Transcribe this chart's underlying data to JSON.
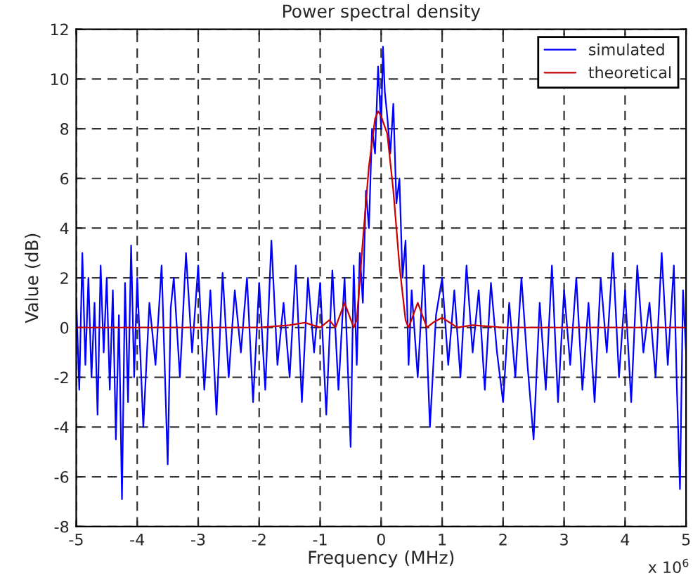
{
  "chart_data": {
    "type": "line",
    "title": "Power spectral density",
    "xlabel": "Frequency (MHz)",
    "ylabel": "Value (dB)",
    "annotations": [
      "x 10$^{6}$"
    ],
    "xlim": [
      -5,
      5
    ],
    "ylim": [
      -8,
      12
    ],
    "xticks": [
      -5,
      -4,
      -3,
      -2,
      -1,
      0,
      1,
      2,
      3,
      4,
      5
    ],
    "yticks": [
      -8,
      -6,
      -4,
      -2,
      0,
      2,
      4,
      6,
      8,
      10,
      12
    ],
    "grid": true,
    "legend": "top right",
    "line_style": "solid",
    "marker": "none",
    "series": [
      {
        "name": "simulated",
        "color": "#0000ff",
        "x": [
          -5,
          -4.95,
          -4.9,
          -4.85,
          -4.8,
          -4.75,
          -4.7,
          -4.65,
          -4.6,
          -4.55,
          -4.5,
          -4.45,
          -4.4,
          -4.35,
          -4.3,
          -4.25,
          -4.2,
          -4.15,
          -4.1,
          -4.05,
          -4,
          -3.9,
          -3.8,
          -3.7,
          -3.6,
          -3.5,
          -3.45,
          -3.4,
          -3.3,
          -3.2,
          -3.1,
          -3,
          -2.9,
          -2.8,
          -2.7,
          -2.6,
          -2.5,
          -2.4,
          -2.3,
          -2.2,
          -2.1,
          -2,
          -1.9,
          -1.8,
          -1.7,
          -1.6,
          -1.5,
          -1.4,
          -1.3,
          -1.2,
          -1.1,
          -1,
          -0.9,
          -0.8,
          -0.7,
          -0.6,
          -0.5,
          -0.45,
          -0.4,
          -0.35,
          -0.3,
          -0.25,
          -0.2,
          -0.15,
          -0.1,
          -0.05,
          0,
          0.03,
          0.06,
          0.1,
          0.15,
          0.2,
          0.25,
          0.3,
          0.35,
          0.4,
          0.45,
          0.5,
          0.6,
          0.7,
          0.8,
          0.9,
          1,
          1.1,
          1.2,
          1.3,
          1.4,
          1.5,
          1.6,
          1.7,
          1.8,
          1.9,
          2,
          2.1,
          2.2,
          2.3,
          2.4,
          2.5,
          2.6,
          2.7,
          2.8,
          2.9,
          3,
          3.1,
          3.2,
          3.3,
          3.4,
          3.5,
          3.6,
          3.7,
          3.8,
          3.9,
          4,
          4.1,
          4.2,
          4.3,
          4.4,
          4.5,
          4.6,
          4.7,
          4.8,
          4.85,
          4.9,
          4.95,
          5
        ],
        "values": [
          1.2,
          -2.5,
          3.0,
          -1.5,
          2.0,
          -2.0,
          1.0,
          -3.5,
          2.5,
          -1.0,
          2.0,
          -2.5,
          1.5,
          -4.5,
          0.5,
          -6.9,
          1.8,
          -3.0,
          3.3,
          -2.0,
          2.0,
          -4.0,
          1.0,
          -1.5,
          2.5,
          -5.5,
          0.8,
          2.0,
          -2.0,
          3.0,
          -1.0,
          2.5,
          -2.5,
          1.5,
          -3.5,
          2.2,
          -2.0,
          1.5,
          -1.0,
          2.0,
          -3.0,
          1.8,
          -2.5,
          3.5,
          -1.5,
          1.0,
          -2.0,
          2.5,
          -3.0,
          2.0,
          -1.0,
          1.8,
          -3.5,
          2.3,
          -2.5,
          2.0,
          -4.8,
          2.5,
          -1.5,
          3.0,
          1.0,
          5.5,
          4.0,
          8.0,
          7.0,
          10.5,
          8.0,
          11.3,
          9.5,
          8.5,
          7.0,
          9.0,
          5.0,
          6.0,
          2.0,
          3.5,
          -1.5,
          1.5,
          -2.0,
          2.5,
          -4.0,
          0.5,
          2.0,
          -1.5,
          1.5,
          -2.0,
          2.5,
          -1.0,
          1.5,
          -2.5,
          1.8,
          -1.0,
          -3.0,
          1.0,
          -2.0,
          2.0,
          -1.5,
          -4.5,
          1.0,
          -2.5,
          2.5,
          -3.0,
          1.5,
          -1.5,
          2.0,
          -2.5,
          1.0,
          -3.0,
          2.0,
          -1.0,
          3.0,
          -2.0,
          1.5,
          -3.0,
          2.5,
          -1.0,
          1.0,
          -2.0,
          3.0,
          -1.5,
          2.5,
          -2.5,
          -6.5,
          1.5,
          -1.0
        ]
      },
      {
        "name": "theoretical",
        "color": "#cc0000",
        "x": [
          -5,
          -4,
          -3,
          -2,
          -1.5,
          -1.25,
          -1,
          -0.85,
          -0.75,
          -0.6,
          -0.45,
          -0.4,
          -0.3,
          -0.2,
          -0.1,
          -0.05,
          0,
          0.1,
          0.2,
          0.3,
          0.4,
          0.45,
          0.6,
          0.75,
          0.85,
          1,
          1.25,
          1.5,
          2,
          3,
          4,
          5
        ],
        "values": [
          0,
          0,
          0,
          0,
          0.1,
          0.2,
          0,
          0.3,
          0,
          1.0,
          0,
          0.3,
          3.5,
          6.5,
          8.4,
          8.7,
          8.5,
          7.8,
          5.5,
          2.5,
          0.3,
          0,
          1.0,
          0,
          0.2,
          0.4,
          0,
          0.1,
          0,
          0,
          0,
          0
        ]
      }
    ]
  }
}
